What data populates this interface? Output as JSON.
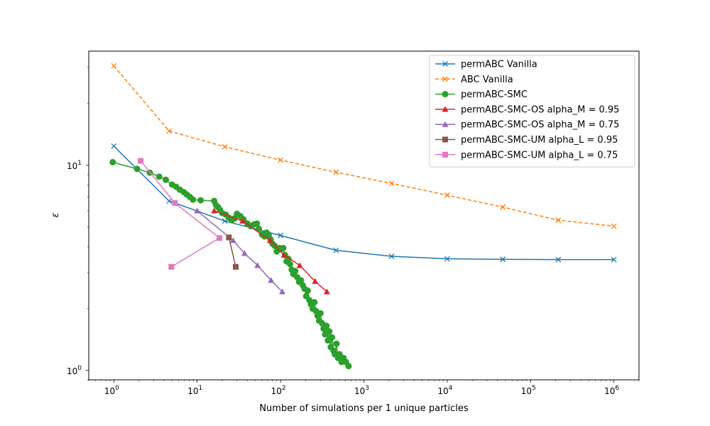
{
  "chart_data": {
    "type": "line",
    "title": "",
    "xlabel": "Number of simulations per 1 unique particles",
    "ylabel": "ε",
    "xscale": "log",
    "yscale": "log",
    "xlim": [
      0.5,
      2000000
    ],
    "ylim": [
      0.9,
      36
    ],
    "x_ticks": [
      {
        "value": 1,
        "base": "10",
        "exp": "0"
      },
      {
        "value": 10,
        "base": "10",
        "exp": "1"
      },
      {
        "value": 100,
        "base": "10",
        "exp": "2"
      },
      {
        "value": 1000,
        "base": "10",
        "exp": "3"
      },
      {
        "value": 10000,
        "base": "10",
        "exp": "4"
      },
      {
        "value": 100000,
        "base": "10",
        "exp": "5"
      },
      {
        "value": 1000000,
        "base": "10",
        "exp": "6"
      }
    ],
    "y_ticks": [
      {
        "value": 1,
        "base": "10",
        "exp": "0"
      },
      {
        "value": 10,
        "base": "10",
        "exp": "1"
      }
    ],
    "grid": false,
    "legend_position": "top-right",
    "series": [
      {
        "name": "permABC Vanilla",
        "color": "#1f77b4",
        "marker": "x",
        "dash": "solid",
        "points": [
          [
            1,
            12.4
          ],
          [
            4.6,
            6.7
          ],
          [
            21.5,
            5.35
          ],
          [
            100,
            4.55
          ],
          [
            464,
            3.85
          ],
          [
            2150,
            3.6
          ],
          [
            10000,
            3.5
          ],
          [
            46400,
            3.48
          ],
          [
            215000,
            3.47
          ],
          [
            1000000,
            3.47
          ]
        ]
      },
      {
        "name": "ABC Vanilla",
        "color": "#ff7f0e",
        "marker": "x",
        "dash": "dashed",
        "points": [
          [
            1,
            30.5
          ],
          [
            4.6,
            14.7
          ],
          [
            21.5,
            12.3
          ],
          [
            100,
            10.6
          ],
          [
            464,
            9.25
          ],
          [
            2150,
            8.15
          ],
          [
            10000,
            7.15
          ],
          [
            46400,
            6.25
          ],
          [
            215000,
            5.4
          ],
          [
            1000000,
            5.05
          ]
        ]
      },
      {
        "name": "permABC-SMC",
        "color": "#2ca02c",
        "marker": "o",
        "dash": "solid",
        "points": [
          [
            0.97,
            10.35
          ],
          [
            1.9,
            9.6
          ],
          [
            2.7,
            9.2
          ],
          [
            3.5,
            8.8
          ],
          [
            4.2,
            8.5
          ],
          [
            5,
            8.05
          ],
          [
            5.6,
            7.85
          ],
          [
            6.2,
            7.6
          ],
          [
            6.9,
            7.4
          ],
          [
            7.5,
            7.2
          ],
          [
            8.2,
            7.0
          ],
          [
            8.9,
            6.8
          ],
          [
            11,
            6.75
          ],
          [
            16,
            6.7
          ],
          [
            16.8,
            6.4
          ],
          [
            17.8,
            6.25
          ],
          [
            18.8,
            6.05
          ],
          [
            20,
            5.85
          ],
          [
            22,
            5.75
          ],
          [
            24,
            5.55
          ],
          [
            26,
            5.4
          ],
          [
            28,
            5.5
          ],
          [
            30,
            5.8
          ],
          [
            33,
            5.65
          ],
          [
            36,
            5.45
          ],
          [
            40,
            5.2
          ],
          [
            44,
            5.05
          ],
          [
            48,
            5.15
          ],
          [
            52,
            5.2
          ],
          [
            55,
            4.9
          ],
          [
            60,
            4.6
          ],
          [
            64,
            4.5
          ],
          [
            68,
            4.7
          ],
          [
            72,
            4.55
          ],
          [
            76,
            4.35
          ],
          [
            80,
            4.15
          ],
          [
            85,
            4.05
          ],
          [
            90,
            3.8
          ],
          [
            97,
            3.95
          ],
          [
            102,
            3.9
          ],
          [
            108,
            3.95
          ],
          [
            113,
            3.65
          ],
          [
            118,
            3.4
          ],
          [
            124,
            3.5
          ],
          [
            130,
            3.3
          ],
          [
            136,
            3.1
          ],
          [
            142,
            2.95
          ],
          [
            150,
            3.05
          ],
          [
            158,
            2.85
          ],
          [
            167,
            2.7
          ],
          [
            176,
            2.75
          ],
          [
            185,
            2.6
          ],
          [
            194,
            2.5
          ],
          [
            203,
            2.3
          ],
          [
            212,
            2.45
          ],
          [
            222,
            2.2
          ],
          [
            232,
            2.1
          ],
          [
            243,
            2.0
          ],
          [
            255,
            2.15
          ],
          [
            266,
            1.95
          ],
          [
            278,
            1.85
          ],
          [
            290,
            1.75
          ],
          [
            302,
            1.9
          ],
          [
            315,
            1.7
          ],
          [
            328,
            1.6
          ],
          [
            342,
            1.5
          ],
          [
            356,
            1.65
          ],
          [
            370,
            1.4
          ],
          [
            385,
            1.55
          ],
          [
            400,
            1.3
          ],
          [
            415,
            1.45
          ],
          [
            432,
            1.25
          ],
          [
            448,
            1.2
          ],
          [
            470,
            1.35
          ],
          [
            490,
            1.15
          ],
          [
            510,
            1.2
          ],
          [
            540,
            1.1
          ],
          [
            570,
            1.15
          ],
          [
            610,
            1.1
          ],
          [
            655,
            1.05
          ]
        ]
      },
      {
        "name": "permABC-SMC-OS alpha_M = 0.95",
        "color": "#d62728",
        "marker": "^",
        "dash": "solid",
        "points": [
          [
            16,
            6.0
          ],
          [
            35,
            5.35
          ],
          [
            75,
            4.3
          ],
          [
            110,
            3.65
          ],
          [
            170,
            3.25
          ],
          [
            260,
            2.72
          ],
          [
            360,
            2.42
          ]
        ]
      },
      {
        "name": "permABC-SMC-OS alpha_M = 0.75",
        "color": "#9467bd",
        "marker": "^",
        "dash": "solid",
        "points": [
          [
            10,
            6.0
          ],
          [
            27,
            4.3
          ],
          [
            37,
            3.72
          ],
          [
            53,
            3.25
          ],
          [
            77,
            2.75
          ],
          [
            105,
            2.42
          ]
        ]
      },
      {
        "name": "permABC-SMC-UM alpha_L = 0.95",
        "color": "#8c564b",
        "marker": "s",
        "dash": "solid",
        "points": [
          [
            24,
            4.45
          ],
          [
            29,
            3.2
          ]
        ]
      },
      {
        "name": "permABC-SMC-UM alpha_L = 0.75",
        "color": "#e377c2",
        "marker": "s",
        "dash": "solid",
        "points": [
          [
            2.1,
            10.5
          ],
          [
            5.4,
            6.55
          ],
          [
            18.5,
            4.42
          ],
          [
            4.9,
            3.2
          ]
        ]
      }
    ]
  }
}
